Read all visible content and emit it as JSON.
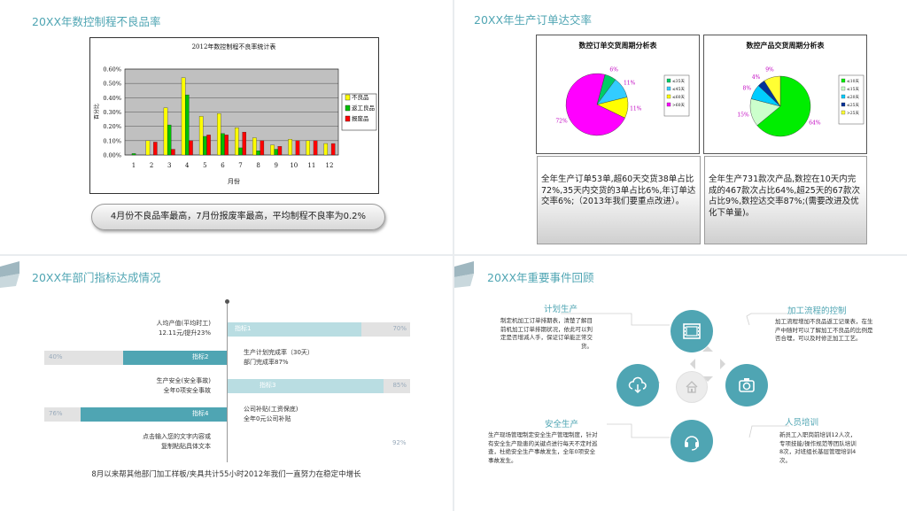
{
  "panel1": {
    "title": "20XX年数控制程不良品率",
    "caption": "4月份不良品率最高，7月份报废率最高，平均制程不良率为0.2%"
  },
  "panel2": {
    "title": "20XX年生产订单达交率",
    "text_left": "全年生产订单53单,超60天交货38单占比72%,35天内交货的3单占比6%,年订单达交率6%;（2013年我们要重点改进）。",
    "text_right": "全年生产731款次产品,数控在10天内完成的467款次占比64%,超25天的67款次占比9%,数控达交率87%;(需要改进及优化下单量)。"
  },
  "panel3": {
    "title": "20XX年部门指标达成情况",
    "rows": [
      {
        "bar_label": "指标1",
        "pct": "70%",
        "text": "人均产值(平均时工)",
        "text2": "12.11元/提升23%"
      },
      {
        "bar_label": "指标2",
        "pct": "40%",
        "text": "生产计划完成率（30天）",
        "text2": "部门完成率87%"
      },
      {
        "bar_label": "指标3",
        "pct": "85%",
        "text": "生产安全(安全事故)",
        "text2": "全年0项安全事故"
      },
      {
        "bar_label": "指标4",
        "pct": "76%",
        "text": "公司补贴(工资保底)",
        "text2": "全年0元公司补贴"
      },
      {
        "pct": "92%",
        "text": "点击输入您的文字内容或",
        "text2": "复制粘贴具体文本"
      }
    ],
    "footer": "8月以来帮其他部门加工样板/夹具共计55小时2012年我们一直努力在稳定中增长"
  },
  "panel4": {
    "title": "20XX年重要事件回顾",
    "events": [
      {
        "title": "计划生产",
        "text": "制定机加工订单排期表，清楚了解目前机加工订单排期状况，依此可以判定是否增减人手，保证订单能正常交货。"
      },
      {
        "title": "加工流程的控制",
        "text": "加工流程增加不良品返工记录表，在生产中随时可以了解加工不良品的比例是否合理，可以及时修正加工工艺。"
      },
      {
        "title": "安全生产",
        "text": "生产现场管理制定安全生产管理制度，针对有安全生产隐患的关键点进行每天不定时巡查，杜绝安全生产事故发生，全年0项安全事故发生。"
      },
      {
        "title": "人员培训",
        "text": "新员工入职岗前培训12人次，专项技能/操作规范等团队培训8次，对班组长基层管理培训4次。"
      }
    ]
  },
  "chart_data": [
    {
      "type": "bar",
      "title": "2012年数控制程不良率统计表",
      "xlabel": "月份",
      "ylabel": "百分比",
      "categories": [
        "1",
        "2",
        "3",
        "4",
        "5",
        "6",
        "7",
        "8",
        "9",
        "10",
        "11",
        "12"
      ],
      "ylim": [
        0,
        0.006
      ],
      "yticks": [
        "0.00%",
        "0.10%",
        "0.20%",
        "0.30%",
        "0.40%",
        "0.50%",
        "0.60%"
      ],
      "legend_position": "right",
      "series": [
        {
          "name": "不良品",
          "color": "#ffff00",
          "values": [
            0.0,
            0.001,
            0.0033,
            0.0054,
            0.0027,
            0.0029,
            0.0019,
            0.0012,
            0.0007,
            0.0011,
            0.001,
            0.0008
          ]
        },
        {
          "name": "返工良品",
          "color": "#00c000",
          "values": [
            0.0001,
            0.0,
            0.0021,
            0.0042,
            0.0013,
            0.0015,
            0.0005,
            0.0003,
            0.0004,
            0.0,
            0.0,
            0.0
          ]
        },
        {
          "name": "报废品",
          "color": "#ff0000",
          "values": [
            0.0,
            0.0009,
            0.0004,
            0.001,
            0.0014,
            0.0014,
            0.0016,
            0.001,
            0.0006,
            0.001,
            0.001,
            0.0008
          ]
        }
      ]
    },
    {
      "type": "pie",
      "title": "数控订单交货周期分析表",
      "legend_position": "right",
      "slices": [
        {
          "label": "≤35天",
          "value": 6,
          "color": "#00cc66",
          "text": "6%"
        },
        {
          "label": "≤45天",
          "value": 11,
          "color": "#33ccff",
          "text": "11%"
        },
        {
          "label": "≤60天",
          "value": 11,
          "color": "#ffff00",
          "text": "11%"
        },
        {
          "label": ">60天",
          "value": 72,
          "color": "#ff00ff",
          "text": "72%"
        }
      ]
    },
    {
      "type": "pie",
      "title": "数控产品交货周期分析表",
      "legend_position": "right",
      "slices": [
        {
          "label": "≤10天",
          "value": 64,
          "color": "#00ee00",
          "text": "64%"
        },
        {
          "label": "≤15天",
          "value": 15,
          "color": "#ccffcc",
          "text": "15%"
        },
        {
          "label": "≤20天",
          "value": 8,
          "color": "#00ccff",
          "text": "8%"
        },
        {
          "label": "≤25天",
          "value": 4,
          "color": "#003399",
          "text": "4%"
        },
        {
          "label": ">25天",
          "value": 9,
          "color": "#ffff33",
          "text": "9%"
        }
      ]
    }
  ],
  "colors": {
    "accent": "#4fa5b3",
    "light_accent": "#b9dde2"
  }
}
